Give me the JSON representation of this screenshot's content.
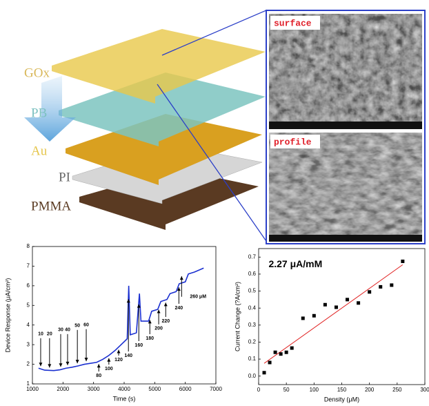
{
  "illustration": {
    "layers": [
      "GOx",
      "PB",
      "Au",
      "PI",
      "PMMA"
    ]
  },
  "sem_images": {
    "labels": [
      "surface",
      "profile"
    ]
  },
  "chart_data": [
    {
      "type": "line",
      "x_label": "Time (s)",
      "y_label": "Device Response (μA/cm²)",
      "x": [
        1200,
        1400,
        1700,
        1900,
        2100,
        2300,
        2500,
        2700,
        2900,
        3100,
        3300,
        3500,
        3700,
        3900,
        4100,
        4150,
        4200,
        4400,
        4500,
        4550,
        4800,
        4900,
        5100,
        5200,
        5400,
        5500,
        5700,
        5800,
        6000,
        6100,
        6300,
        6600
      ],
      "values": [
        1.8,
        1.7,
        1.68,
        1.72,
        1.8,
        1.85,
        1.92,
        2.0,
        2.05,
        2.1,
        2.25,
        2.45,
        2.7,
        3.0,
        3.3,
        6.0,
        3.5,
        3.6,
        5.6,
        4.2,
        4.2,
        4.7,
        4.8,
        5.2,
        5.3,
        5.6,
        5.7,
        6.1,
        6.2,
        6.6,
        6.7,
        6.9
      ],
      "color": "#1a2fd0",
      "xlim": [
        1000,
        7000
      ],
      "xticks": [
        1000,
        2000,
        3000,
        4000,
        5000,
        6000,
        7000
      ],
      "ylim": [
        1,
        8
      ],
      "yticks": [
        1,
        2,
        3,
        4,
        5,
        6,
        7,
        8
      ],
      "annotations": [
        {
          "text": "10",
          "x": 1270,
          "y": 3.54
        },
        {
          "text": "20",
          "x": 1560,
          "y": 3.54
        },
        {
          "text": "30",
          "x": 1925,
          "y": 3.75
        },
        {
          "text": "40",
          "x": 2150,
          "y": 3.75
        },
        {
          "text": "50",
          "x": 2470,
          "y": 3.96
        },
        {
          "text": "60",
          "x": 2760,
          "y": 4.0
        },
        {
          "text": "80",
          "x": 3170,
          "y": 1.42
        },
        {
          "text": "100",
          "x": 3500,
          "y": 1.77
        },
        {
          "text": "120",
          "x": 3820,
          "y": 2.23
        },
        {
          "text": "140",
          "x": 4140,
          "y": 2.44
        },
        {
          "text": "160",
          "x": 4480,
          "y": 2.97
        },
        {
          "text": "180",
          "x": 4840,
          "y": 3.32
        },
        {
          "text": "200",
          "x": 5130,
          "y": 3.82
        },
        {
          "text": "220",
          "x": 5360,
          "y": 4.2
        },
        {
          "text": "240",
          "x": 5790,
          "y": 4.87
        },
        {
          "text": "260 μM",
          "x": 6150,
          "y": 5.44
        }
      ]
    },
    {
      "type": "scatter",
      "x_label": "Density (μM)",
      "y_label": "Current Change (?A/cm²)",
      "x": [
        10,
        20,
        30,
        40,
        50,
        60,
        80,
        100,
        120,
        140,
        160,
        180,
        200,
        220,
        240,
        260
      ],
      "values": [
        0.02,
        0.08,
        0.14,
        0.13,
        0.14,
        0.165,
        0.34,
        0.355,
        0.42,
        0.405,
        0.45,
        0.43,
        0.495,
        0.525,
        0.535,
        0.675
      ],
      "color": "#000000",
      "fit": {
        "x": [
          10,
          260
        ],
        "y": [
          0.075,
          0.655
        ],
        "color": "#e02020"
      },
      "xlim": [
        0,
        300
      ],
      "xticks": [
        0,
        50,
        100,
        150,
        200,
        250,
        300
      ],
      "ylim": [
        -0.05,
        0.75
      ],
      "yticks": [
        {
          "value": 0,
          "label": "0.0"
        },
        0.1,
        0.2,
        0.3,
        0.4,
        0.5,
        0.6,
        0.7
      ],
      "annotations": [
        {
          "text": "2.27 μA/mM",
          "x": 18,
          "y": 0.655
        }
      ]
    }
  ]
}
